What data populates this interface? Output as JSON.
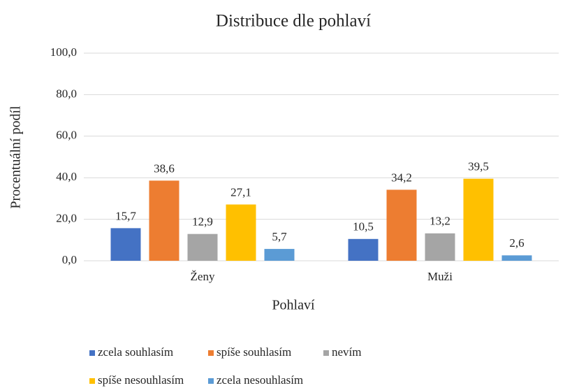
{
  "chart_data": {
    "type": "bar",
    "title": "Distribuce dle pohlaví",
    "x_label": "Pohlaví",
    "y_label": "Procentuální podíl",
    "categories": [
      "Ženy",
      "Muži"
    ],
    "series": [
      {
        "name": "zcela souhlasím",
        "color": "#4472c4",
        "values": [
          15.7,
          10.5
        ],
        "value_labels": [
          "15,7",
          "10,5"
        ]
      },
      {
        "name": "spíše souhlasím",
        "color": "#ed7d31",
        "values": [
          38.6,
          34.2
        ],
        "value_labels": [
          "38,6",
          "34,2"
        ]
      },
      {
        "name": "nevím",
        "color": "#a5a5a5",
        "values": [
          12.9,
          13.2
        ],
        "value_labels": [
          "12,9",
          "13,2"
        ]
      },
      {
        "name": "spíše nesouhlasím",
        "color": "#ffc000",
        "values": [
          27.1,
          39.5
        ],
        "value_labels": [
          "27,1",
          "39,5"
        ]
      },
      {
        "name": "zcela nesouhlasím",
        "color": "#5b9bd5",
        "values": [
          5.7,
          2.6
        ],
        "value_labels": [
          "5,7",
          "2,6"
        ]
      }
    ],
    "ylim": [
      0,
      100
    ],
    "yticks": [
      {
        "value": 0,
        "label": "0,0"
      },
      {
        "value": 20,
        "label": "20,0"
      },
      {
        "value": 40,
        "label": "40,0"
      },
      {
        "value": 60,
        "label": "60,0"
      },
      {
        "value": 80,
        "label": "80,0"
      },
      {
        "value": 100,
        "label": "100,0"
      }
    ],
    "grid": true,
    "legend": "bottom"
  }
}
